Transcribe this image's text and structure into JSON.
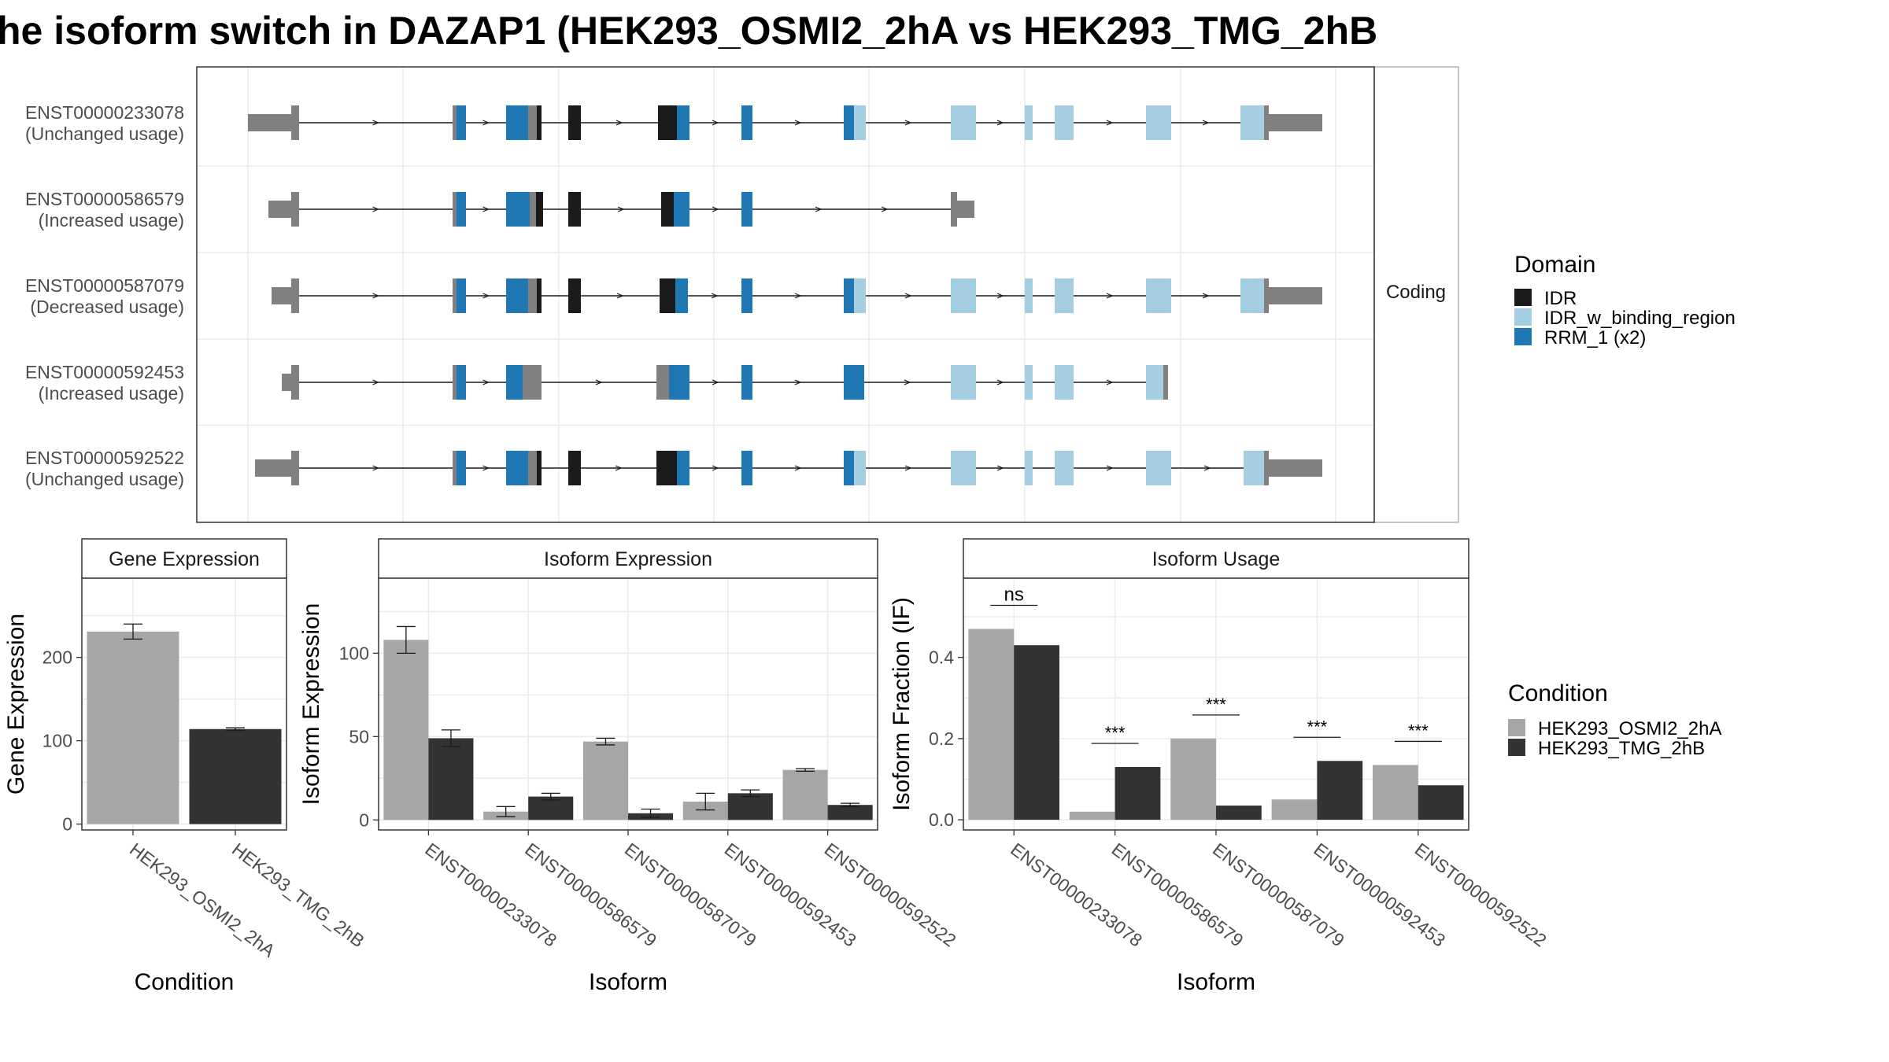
{
  "title": "he isoform switch in DAZAP1 (HEK293_OSMI2_2hA vs HEK293_TMG_2hB",
  "colors": {
    "IDR": "#1a1a1a",
    "IDR_w_binding_region": "#a6cee3",
    "RRM_1 (x2)": "#1f78b4",
    "utr": "#808080",
    "cond_a": "#a6a6a6",
    "cond_b": "#333333"
  },
  "chart_data": [
    {
      "type": "gene-structure",
      "facet_label": "Coding",
      "isoforms": [
        {
          "id": "ENST00000233078",
          "status": "(Unchanged usage)"
        },
        {
          "id": "ENST00000586579",
          "status": "(Increased usage)"
        },
        {
          "id": "ENST00000587079",
          "status": "(Decreased usage)"
        },
        {
          "id": "ENST00000592453",
          "status": "(Increased usage)"
        },
        {
          "id": "ENST00000592522",
          "status": "(Unchanged usage)"
        }
      ],
      "legend": {
        "title": "Domain",
        "items": [
          "IDR",
          "IDR_w_binding_region",
          "RRM_1 (x2)"
        ]
      }
    },
    {
      "type": "bar",
      "title": "Gene Expression",
      "xlabel": "Condition",
      "ylabel": "Gene Expression",
      "categories": [
        "HEK293_OSMI2_2hA",
        "HEK293_TMG_2hB"
      ],
      "values": [
        231,
        114
      ],
      "errors": [
        9,
        1.5
      ],
      "ylim": [
        -7,
        295
      ],
      "yticks": [
        0,
        100,
        200
      ]
    },
    {
      "type": "bar",
      "title": "Isoform Expression",
      "xlabel": "Isoform",
      "ylabel": "Isoform Expression",
      "categories": [
        "ENST00000233078",
        "ENST00000586579",
        "ENST00000587079",
        "ENST00000592453",
        "ENST00000592522"
      ],
      "series": [
        {
          "name": "HEK293_OSMI2_2hA",
          "values": [
            108,
            5,
            47,
            11,
            30
          ],
          "errors": [
            8,
            3,
            2,
            5,
            0.8
          ]
        },
        {
          "name": "HEK293_TMG_2hB",
          "values": [
            49,
            14,
            4,
            16,
            9
          ],
          "errors": [
            5,
            2,
            2.5,
            2,
            1
          ]
        }
      ],
      "ylim": [
        -6,
        145
      ],
      "yticks": [
        0,
        50,
        100
      ]
    },
    {
      "type": "bar",
      "title": "Isoform Usage",
      "xlabel": "Isoform",
      "ylabel": "Isoform Fraction (IF)",
      "categories": [
        "ENST00000233078",
        "ENST00000586579",
        "ENST00000587079",
        "ENST00000592453",
        "ENST00000592522"
      ],
      "series": [
        {
          "name": "HEK293_OSMI2_2hA",
          "values": [
            0.47,
            0.02,
            0.2,
            0.05,
            0.135
          ]
        },
        {
          "name": "HEK293_TMG_2hB",
          "values": [
            0.43,
            0.13,
            0.035,
            0.145,
            0.085
          ]
        }
      ],
      "significance": [
        "ns",
        "***",
        "***",
        "***",
        "***"
      ],
      "ylim": [
        -0.025,
        0.595
      ],
      "yticks": [
        0.0,
        0.2,
        0.4
      ],
      "legend": {
        "title": "Condition",
        "items": [
          "HEK293_OSMI2_2hA",
          "HEK293_TMG_2hB"
        ]
      }
    }
  ]
}
